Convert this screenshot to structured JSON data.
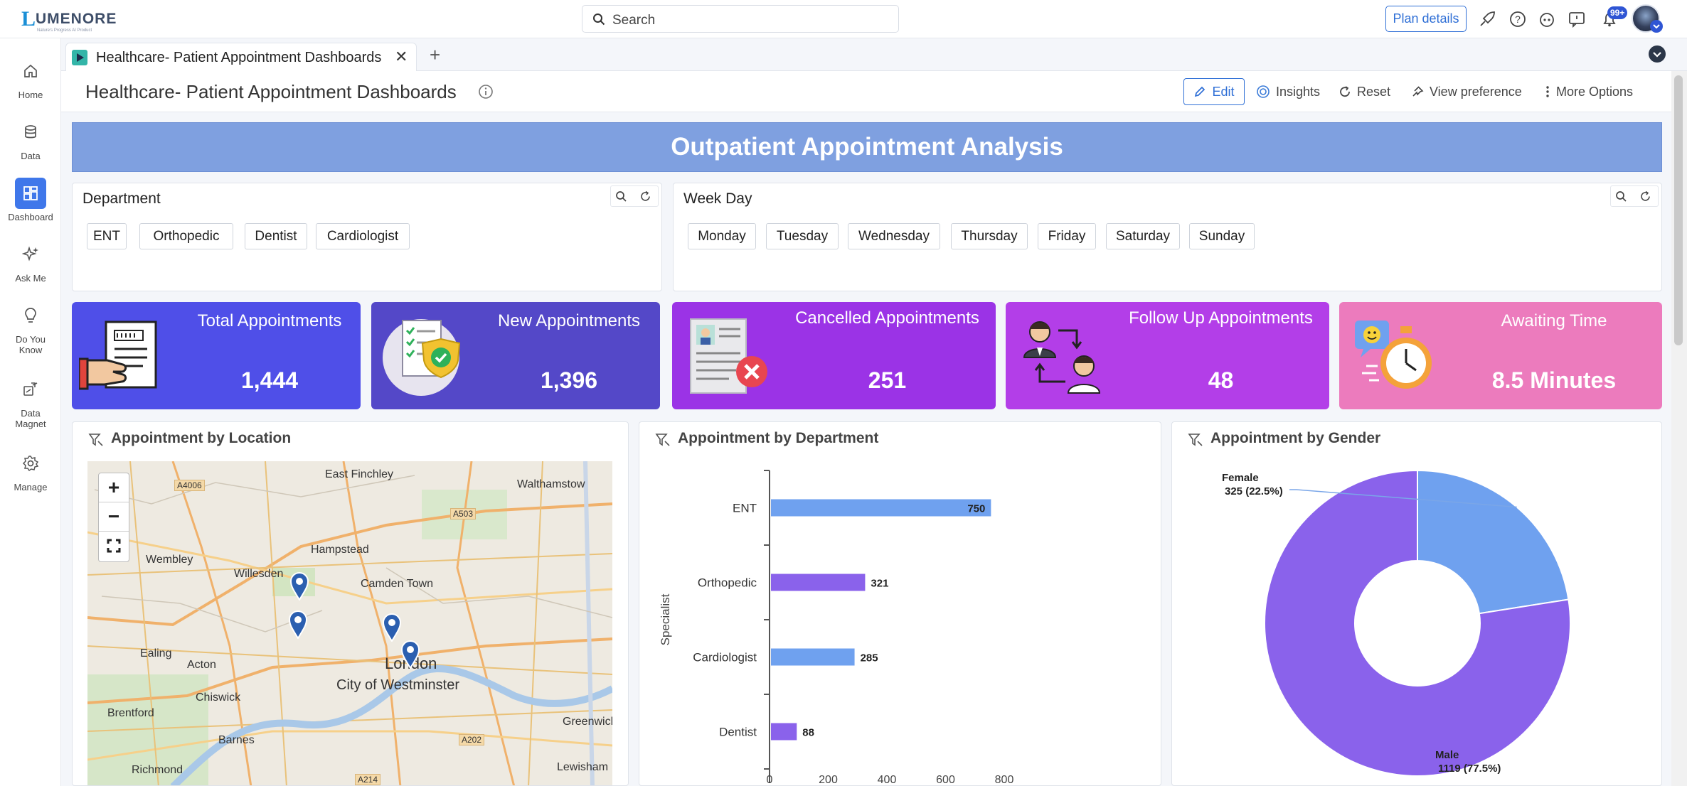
{
  "app": {
    "logo_text": "UMENORE",
    "logo_tagline": "Nature's Progress AI Product"
  },
  "topbar": {
    "search_placeholder": "Search",
    "plan_button": "Plan details",
    "notification_count": "99+"
  },
  "sidebar": {
    "items": [
      {
        "label": "Home",
        "icon": "home-icon"
      },
      {
        "label": "Data",
        "icon": "database-icon"
      },
      {
        "label": "Dashboard",
        "icon": "dashboard-icon",
        "active": true
      },
      {
        "label": "Ask Me",
        "icon": "sparkle-icon"
      },
      {
        "label": "Do You Know",
        "icon": "lightbulb-icon"
      },
      {
        "label": "Data Magnet",
        "icon": "magnet-icon"
      },
      {
        "label": "Manage",
        "icon": "gear-icon"
      }
    ]
  },
  "tabs": [
    {
      "label": "Healthcare- Patient Appointment Dashboards",
      "close": "✕"
    }
  ],
  "tab_add": "+",
  "titlebar": {
    "title": "Healthcare- Patient Appointment Dashboards",
    "edit": "Edit",
    "insights": "Insights",
    "reset": "Reset",
    "view_preference": "View preference",
    "more_options": "More Options"
  },
  "banner": {
    "title": "Outpatient Appointment Analysis"
  },
  "filters": {
    "department": {
      "title": "Department",
      "options": [
        "ENT",
        "Orthopedic",
        "Dentist",
        "Cardiologist"
      ]
    },
    "weekday": {
      "title": "Week Day",
      "options": [
        "Monday",
        "Tuesday",
        "Wednesday",
        "Thursday",
        "Friday",
        "Saturday",
        "Sunday"
      ]
    }
  },
  "kpis": [
    {
      "label": "Total Appointments",
      "value": "1,444",
      "color": "#4f4fe8"
    },
    {
      "label": "New Appointments",
      "value": "1,396",
      "color": "#5448c8"
    },
    {
      "label": "Cancelled Appointments",
      "value": "251",
      "color": "#9b33e6"
    },
    {
      "label": "Follow Up Appointments",
      "value": "48",
      "color": "#b33ee8"
    },
    {
      "label": "Awaiting Time",
      "value": "8.5 Minutes",
      "color": "#ec7bbd"
    }
  ],
  "panels": {
    "location": {
      "title": "Appointment by Location"
    },
    "department": {
      "title": "Appointment by Department"
    },
    "gender": {
      "title": "Appointment by Gender"
    }
  },
  "map": {
    "zoom_in": "+",
    "zoom_out": "−",
    "labels": [
      "East Finchley",
      "Walthamstow",
      "Hampstead",
      "Wembley",
      "Willesden",
      "Camden Town",
      "London",
      "City of Westminster",
      "Ealing",
      "Acton",
      "Chiswick",
      "Brentford",
      "Barnes",
      "Richmond",
      "Greenwich",
      "Lewisham"
    ],
    "roads": [
      "A4006",
      "A503",
      "A202",
      "A214"
    ]
  },
  "chart_data": [
    {
      "type": "bar",
      "orientation": "horizontal",
      "categories": [
        "ENT",
        "Orthopedic",
        "Cardiologist",
        "Dentist"
      ],
      "values": [
        750,
        321,
        285,
        88
      ],
      "colors": [
        "#6fa1ef",
        "#8a62eb",
        "#6fa1ef",
        "#8a62eb"
      ],
      "ylabel": "Specialist",
      "xticks": [
        "0",
        "200",
        "400",
        "600",
        "800"
      ],
      "xlim": [
        0,
        800
      ]
    },
    {
      "type": "pie",
      "donut": true,
      "labels": [
        "Female",
        "Male"
      ],
      "values": [
        325,
        1119
      ],
      "percent_labels": [
        "325 (22.5%)",
        "1119 (77.5%)"
      ],
      "colors": [
        "#6fa1ef",
        "#8a62eb"
      ]
    }
  ]
}
